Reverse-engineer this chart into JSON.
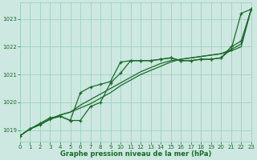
{
  "title": "Graphe pression niveau de la mer (hPa)",
  "bg_color": "#cce8e0",
  "grid_color": "#99ccbb",
  "line_color": "#1a6b2a",
  "xlim": [
    0,
    23
  ],
  "ylim": [
    1018.6,
    1023.6
  ],
  "yticks": [
    1019,
    1020,
    1021,
    1022,
    1023
  ],
  "xticks": [
    0,
    1,
    2,
    3,
    4,
    5,
    6,
    7,
    8,
    9,
    10,
    11,
    12,
    13,
    14,
    15,
    16,
    17,
    18,
    19,
    20,
    21,
    22,
    23
  ],
  "series_smooth1": [
    1018.8,
    1019.05,
    1019.2,
    1019.4,
    1019.55,
    1019.65,
    1019.8,
    1019.95,
    1020.15,
    1020.35,
    1020.6,
    1020.8,
    1021.0,
    1021.15,
    1021.3,
    1021.45,
    1021.55,
    1021.6,
    1021.65,
    1021.7,
    1021.75,
    1021.85,
    1022.0,
    1023.35
  ],
  "series_smooth2": [
    1018.8,
    1019.05,
    1019.2,
    1019.4,
    1019.55,
    1019.65,
    1019.9,
    1020.1,
    1020.3,
    1020.5,
    1020.7,
    1020.9,
    1021.1,
    1021.25,
    1021.4,
    1021.5,
    1021.55,
    1021.6,
    1021.65,
    1021.7,
    1021.75,
    1021.9,
    1022.1,
    1023.35
  ],
  "series_marker1": [
    1018.8,
    1019.05,
    1019.2,
    1019.4,
    1019.5,
    1019.35,
    1020.35,
    1020.55,
    1020.65,
    1020.75,
    1021.45,
    1021.5,
    1021.5,
    1021.5,
    1021.55,
    1021.6,
    1021.5,
    1021.5,
    1021.55,
    1021.55,
    1021.6,
    1022.0,
    1022.2,
    1023.35
  ],
  "series_marker2": [
    1018.8,
    1019.05,
    1019.25,
    1019.45,
    1019.5,
    1019.35,
    1019.35,
    1019.85,
    1020.0,
    1020.7,
    1021.05,
    1021.5,
    1021.5,
    1021.5,
    1021.55,
    1021.6,
    1021.5,
    1021.5,
    1021.55,
    1021.55,
    1021.6,
    1021.9,
    1023.2,
    1023.35
  ]
}
